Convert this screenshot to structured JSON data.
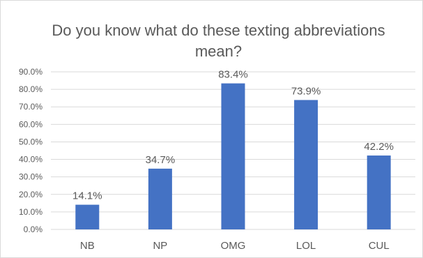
{
  "chart_data": {
    "type": "bar",
    "title": "Do you know what do these texting abbreviations mean?",
    "categories": [
      "NB",
      "NP",
      "OMG",
      "LOL",
      "CUL"
    ],
    "values": [
      14.1,
      34.7,
      83.4,
      73.9,
      42.2
    ],
    "data_labels": [
      "14.1%",
      "34.7%",
      "83.4%",
      "73.9%",
      "42.2%"
    ],
    "ylim": [
      0,
      90
    ],
    "yticks": [
      0,
      10,
      20,
      30,
      40,
      50,
      60,
      70,
      80,
      90
    ],
    "ytick_labels": [
      "0.0%",
      "10.0%",
      "20.0%",
      "30.0%",
      "40.0%",
      "50.0%",
      "60.0%",
      "70.0%",
      "80.0%",
      "90.0%"
    ],
    "grid": true,
    "legend": "none",
    "bar_color": "#4472c4",
    "grid_color": "#d9d9d9",
    "text_color": "#595959"
  }
}
